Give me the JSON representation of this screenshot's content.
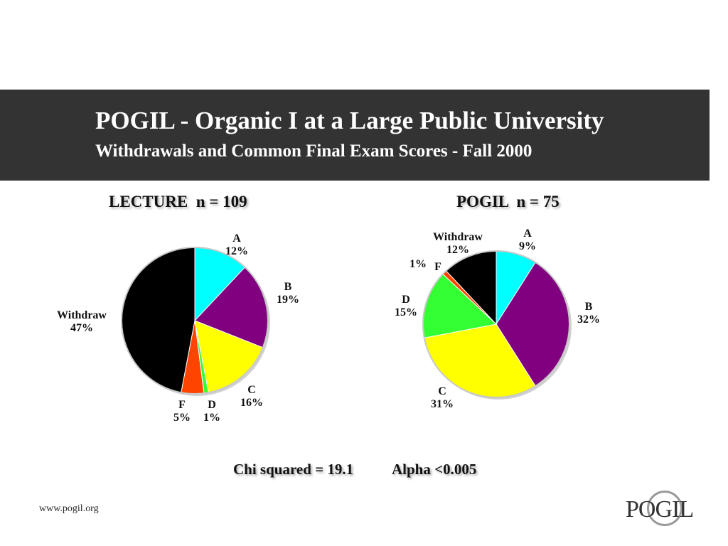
{
  "header": {
    "title": "POGIL - Organic I at a Large Public University",
    "subtitle": "Withdrawals and Common Final Exam Scores - Fall 2000"
  },
  "charts": {
    "lecture_heading": "LECTURE  n = 109",
    "pogil_heading": "POGIL  n = 75"
  },
  "stats": {
    "chi_squared": "Chi squared = 19.1",
    "alpha": "Alpha <0.005"
  },
  "footer": {
    "url": "www.pogil.org",
    "logo_text": "POGIL"
  },
  "colors": {
    "A": "#00ffff",
    "B": "#800080",
    "C": "#ffff00",
    "D": "#33ff33",
    "F": "#ff4400",
    "Withdraw": "#000000",
    "banner": "#333333"
  },
  "chart_data": [
    {
      "type": "pie",
      "title": "LECTURE  n = 109",
      "categories": [
        "A",
        "B",
        "C",
        "D",
        "F",
        "Withdraw"
      ],
      "values": [
        12,
        19,
        16,
        1,
        5,
        47
      ],
      "labels": [
        "12%",
        "19%",
        "16%",
        "1%",
        "5%",
        "47%"
      ]
    },
    {
      "type": "pie",
      "title": "POGIL  n = 75",
      "categories": [
        "A",
        "B",
        "C",
        "D",
        "F",
        "Withdraw"
      ],
      "values": [
        9,
        32,
        31,
        15,
        1,
        12
      ],
      "labels": [
        "9%",
        "32%",
        "31%",
        "15%",
        "1%",
        "12%"
      ]
    }
  ]
}
